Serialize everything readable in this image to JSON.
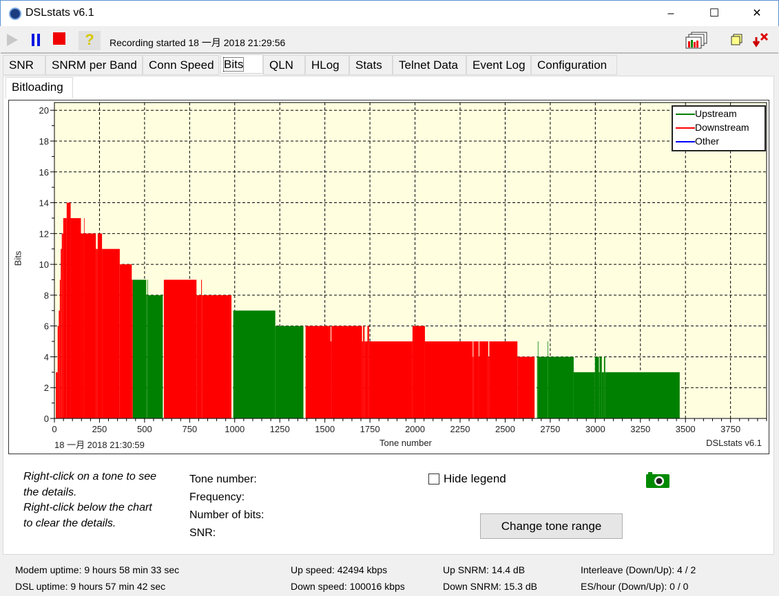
{
  "window": {
    "title": "DSLstats v6.1",
    "minimize": "–",
    "maximize": "☐",
    "close": "✕"
  },
  "toolbar": {
    "recording_text": "Recording started 18 一月 2018 21:29:56",
    "icons": [
      "play-icon",
      "pause-icon",
      "stop-icon",
      "help-icon",
      "graphs-icon",
      "windows-icon",
      "minimize-to-tray-icon"
    ]
  },
  "tabs": [
    {
      "label": "SNR"
    },
    {
      "label": "SNRM per Band"
    },
    {
      "label": "Conn Speed"
    },
    {
      "label": "Bits",
      "selected": true
    },
    {
      "label": "QLN"
    },
    {
      "label": "HLog"
    },
    {
      "label": "Stats"
    },
    {
      "label": "Telnet Data"
    },
    {
      "label": "Event Log"
    },
    {
      "label": "Configuration"
    }
  ],
  "subtab": "Bitloading",
  "chart_data": {
    "type": "area",
    "xlabel": "Tone number",
    "ylabel": "Bits",
    "timestamp": "18 一月 2018 21:30:59",
    "watermark": "DSLstats v6.1",
    "xlim": [
      0,
      3950
    ],
    "ylim": [
      0,
      20.5
    ],
    "xticks": [
      0,
      250,
      500,
      750,
      1000,
      1250,
      1500,
      1750,
      2000,
      2250,
      2500,
      2750,
      3000,
      3250,
      3500,
      3750
    ],
    "yticks": [
      0,
      2,
      4,
      6,
      8,
      10,
      12,
      14,
      16,
      18,
      20
    ],
    "grid": true,
    "legend_position": "top-right",
    "colors": {
      "Upstream": "#008000",
      "Downstream": "#ff0000",
      "Other": "#0000ff"
    },
    "legend": [
      "Upstream",
      "Downstream",
      "Other"
    ],
    "series": [
      {
        "name": "Downstream",
        "segments": [
          [
            8,
            18,
            3
          ],
          [
            18,
            24,
            6
          ],
          [
            24,
            30,
            7
          ],
          [
            30,
            35,
            9
          ],
          [
            35,
            41,
            11
          ],
          [
            41,
            49,
            12
          ],
          [
            49,
            68,
            13
          ],
          [
            68,
            90,
            14
          ],
          [
            90,
            147,
            13
          ],
          [
            147,
            164,
            12
          ],
          [
            164,
            166,
            13
          ],
          [
            166,
            230,
            12
          ],
          [
            230,
            240,
            11
          ],
          [
            240,
            264,
            12
          ],
          [
            264,
            360,
            11
          ],
          [
            360,
            363,
            11
          ],
          [
            363,
            429,
            10
          ],
          [
            429,
            435,
            9
          ]
        ]
      },
      {
        "name": "Upstream",
        "segments": [
          [
            435,
            509,
            9
          ],
          [
            509,
            515,
            8
          ],
          [
            515,
            518,
            9
          ],
          [
            518,
            601,
            8
          ]
        ]
      },
      {
        "name": "Downstream",
        "segments": [
          [
            607,
            788,
            9
          ],
          [
            788,
            814,
            8
          ],
          [
            814,
            818,
            9
          ],
          [
            818,
            982,
            8
          ]
        ]
      },
      {
        "name": "Upstream",
        "segments": [
          [
            992,
            1225,
            7
          ],
          [
            1225,
            1381,
            6
          ]
        ]
      },
      {
        "name": "Downstream",
        "segments": [
          [
            1393,
            1532,
            6
          ],
          [
            1532,
            1536,
            5
          ],
          [
            1536,
            1706,
            6
          ],
          [
            1706,
            1712,
            5
          ],
          [
            1712,
            1720,
            6
          ],
          [
            1720,
            1736,
            5
          ],
          [
            1736,
            1745,
            6
          ],
          [
            1745,
            1986,
            5
          ],
          [
            1986,
            2055,
            6
          ],
          [
            2055,
            2320,
            5
          ],
          [
            2320,
            2324,
            4
          ],
          [
            2324,
            2353,
            5
          ],
          [
            2353,
            2357,
            4
          ],
          [
            2357,
            2406,
            5
          ],
          [
            2406,
            2412,
            4
          ],
          [
            2412,
            2568,
            5
          ],
          [
            2568,
            2663,
            4
          ]
        ]
      },
      {
        "name": "Upstream",
        "segments": [
          [
            2677,
            2681,
            4
          ],
          [
            2681,
            2684,
            5
          ],
          [
            2684,
            2735,
            4
          ],
          [
            2735,
            2738,
            5
          ],
          [
            2738,
            2880,
            4
          ],
          [
            2880,
            2998,
            3
          ],
          [
            2998,
            3020,
            4
          ],
          [
            3020,
            3024,
            3
          ],
          [
            3024,
            3036,
            4
          ],
          [
            3036,
            3048,
            3
          ],
          [
            3048,
            3055,
            4
          ],
          [
            3055,
            3468,
            3
          ]
        ]
      }
    ]
  },
  "info": {
    "help_line1": "Right-click on a tone to see",
    "help_line2": "the details.",
    "help_line3": "Right-click below the chart",
    "help_line4": "to clear the details.",
    "tone_label": "Tone number:",
    "freq_label": "Frequency:",
    "bits_label": "Number of bits:",
    "snr_label": "SNR:",
    "hide_legend": "Hide legend",
    "hide_legend_checked": false,
    "change_range": "Change tone range"
  },
  "status": {
    "modem_uptime": "Modem uptime:  9 hours 58 min 33 sec",
    "dsl_uptime": "DSL uptime:  9 hours 57 min 42 sec",
    "up_speed": "Up speed: 42494 kbps",
    "down_speed": "Down speed: 100016 kbps",
    "up_snrm": "Up SNRM: 14.4 dB",
    "down_snrm": "Down SNRM: 15.3 dB",
    "interleave": "Interleave (Down/Up): 4 / 2",
    "es_hour": "ES/hour (Down/Up): 0 / 0"
  }
}
